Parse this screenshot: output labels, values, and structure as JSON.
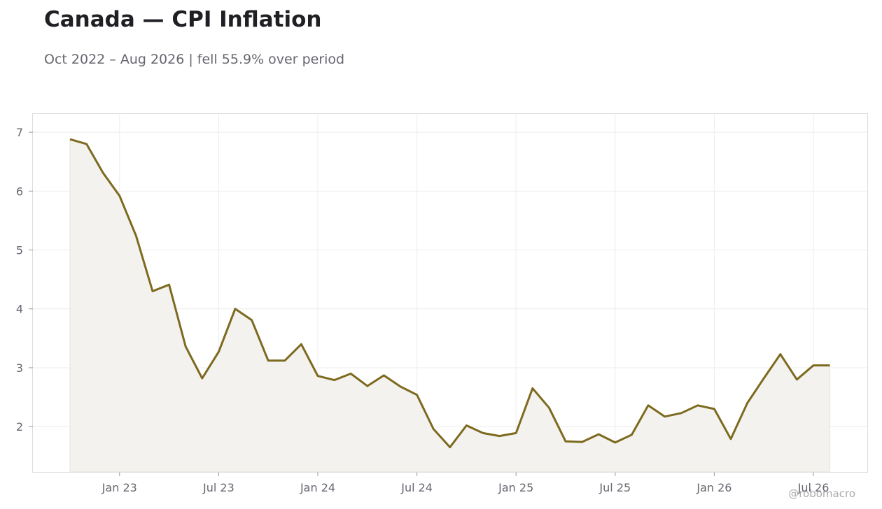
{
  "header": {
    "title": "Canada — CPI Inflation",
    "subtitle": "Oct 2022 – Aug 2026 | fell 55.9% over period"
  },
  "watermark": "@robomacro",
  "colors": {
    "line": "#7d6a1f",
    "fill": "#f3f2ee",
    "grid": "#ececec",
    "frame": "#dddddd"
  },
  "chart_data": {
    "type": "area",
    "x_start": "2022-10",
    "x_labels": [
      "Oct 22",
      "Nov 22",
      "Dec 22",
      "Jan 23",
      "Feb 23",
      "Mar 23",
      "Apr 23",
      "May 23",
      "Jun 23",
      "Jul 23",
      "Aug 23",
      "Sep 23",
      "Oct 23",
      "Nov 23",
      "Dec 23",
      "Jan 24",
      "Feb 24",
      "Mar 24",
      "Apr 24",
      "May 24",
      "Jun 24",
      "Jul 24",
      "Aug 24",
      "Sep 24",
      "Oct 24",
      "Nov 24",
      "Dec 24",
      "Jan 25",
      "Feb 25",
      "Mar 25",
      "Apr 25",
      "May 25",
      "Jun 25",
      "Jul 25",
      "Aug 25",
      "Sep 25",
      "Oct 25",
      "Nov 25",
      "Dec 25",
      "Jan 26",
      "Feb 26",
      "Mar 26",
      "Apr 26",
      "May 26",
      "Jun 26",
      "Jul 26",
      "Aug 26"
    ],
    "values": [
      6.88,
      6.8,
      6.31,
      5.92,
      5.24,
      4.3,
      4.41,
      3.36,
      2.82,
      3.27,
      4.0,
      3.81,
      3.12,
      3.12,
      3.4,
      2.86,
      2.79,
      2.9,
      2.69,
      2.87,
      2.68,
      2.54,
      1.96,
      1.65,
      2.02,
      1.89,
      1.84,
      1.89,
      2.65,
      2.32,
      1.75,
      1.74,
      1.87,
      1.73,
      1.86,
      2.36,
      2.17,
      2.23,
      2.36,
      2.3,
      1.79,
      2.4,
      2.82,
      3.23,
      2.8,
      3.04,
      3.04
    ],
    "x_ticks": [
      "Jan 23",
      "Jul 23",
      "Jan 24",
      "Jul 24",
      "Jan 25",
      "Jul 25",
      "Jan 26",
      "Jul 26"
    ],
    "y_ticks": [
      2,
      3,
      4,
      5,
      6,
      7
    ],
    "ylim": [
      1.23,
      7.31
    ],
    "grid": true,
    "legend": "none"
  }
}
